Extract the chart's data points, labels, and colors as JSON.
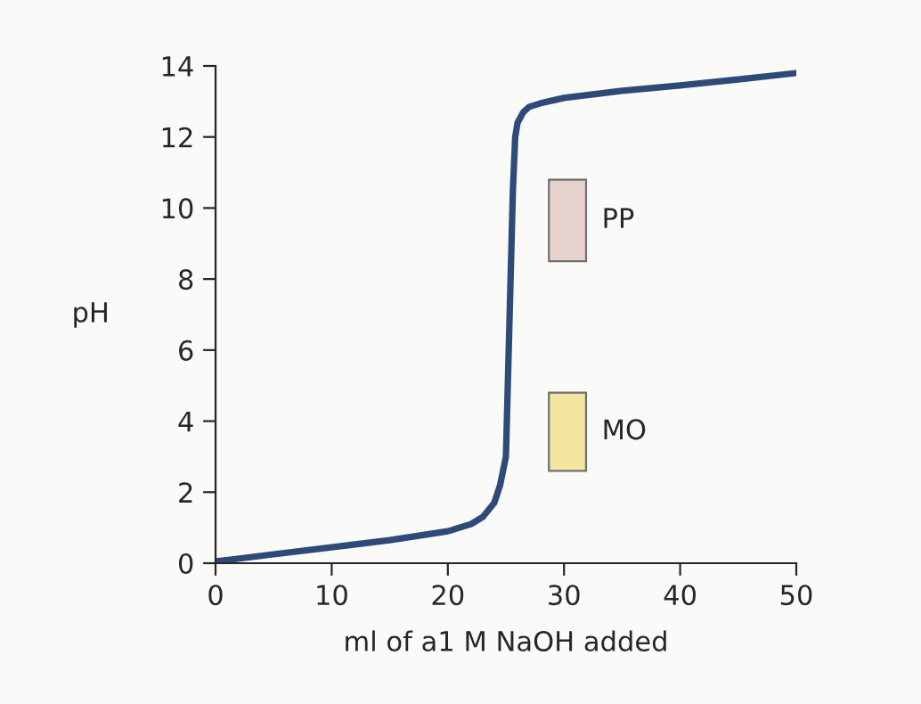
{
  "chart_data": {
    "type": "line",
    "xlabel": "ml of a1 M NaOH added",
    "ylabel": "pH",
    "series": [
      {
        "color": "#2f4a78",
        "x": [
          0,
          5,
          10,
          15,
          20,
          22,
          23,
          24,
          24.5,
          25,
          25.2,
          25.4,
          25.6,
          25.8,
          26,
          26.5,
          27,
          28,
          30,
          35,
          40,
          45,
          50
        ],
        "values": [
          0.05,
          0.25,
          0.45,
          0.65,
          0.9,
          1.1,
          1.3,
          1.7,
          2.2,
          3.0,
          5.5,
          8.0,
          10.5,
          12.0,
          12.4,
          12.7,
          12.85,
          12.95,
          13.1,
          13.3,
          13.45,
          13.62,
          13.8
        ]
      }
    ],
    "bands": [
      {
        "axis": "y",
        "from": 8.5,
        "to": 10.8,
        "label": "PP",
        "color": "#e8d2ce"
      },
      {
        "axis": "y",
        "from": 2.6,
        "to": 4.8,
        "label": "MO",
        "color": "#f3e6a0"
      }
    ],
    "xlim": [
      0,
      50
    ],
    "ylim": [
      0,
      14
    ],
    "xticks": [
      0,
      10,
      20,
      30,
      40,
      50
    ],
    "yticks": [
      0,
      2,
      4,
      6,
      8,
      10,
      12,
      14
    ],
    "grid": false,
    "legend": false,
    "marker": "none",
    "line_style": "solid"
  }
}
